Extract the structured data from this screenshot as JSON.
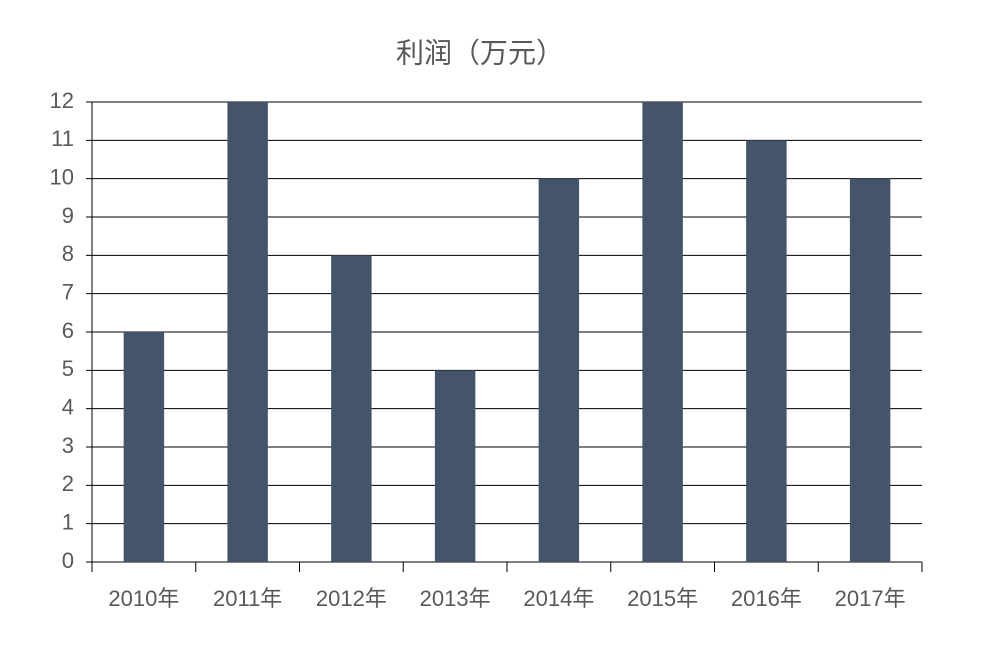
{
  "chart_data": {
    "type": "bar",
    "title": "利润（万元）",
    "categories": [
      "2010年",
      "2011年",
      "2012年",
      "2013年",
      "2014年",
      "2015年",
      "2016年",
      "2017年"
    ],
    "values": [
      6,
      12,
      8,
      5,
      10,
      12,
      11,
      10
    ],
    "color": "#44546a",
    "ylim": [
      0,
      12
    ],
    "yticks": [
      0,
      1,
      2,
      3,
      4,
      5,
      6,
      7,
      8,
      9,
      10,
      11,
      12
    ],
    "grid": true
  }
}
